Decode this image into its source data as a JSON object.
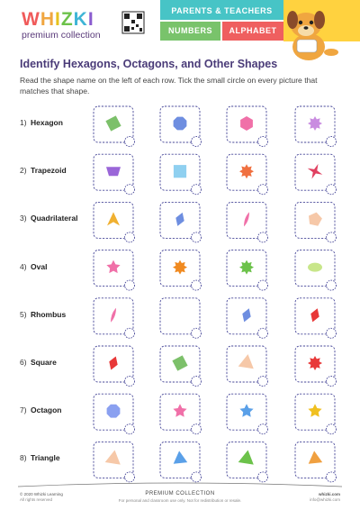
{
  "header": {
    "logo": "WHIZKI",
    "logo_subtitle": "premium collection",
    "tabs": [
      "PARENTS & TEACHERS",
      "NUMBERS",
      "ALPHABET"
    ]
  },
  "title": "Identify Hexagons, Octagons, and Other Shapes",
  "instructions": "Read the shape name on the left of each row. Tick the small circle on every picture that matches that shape.",
  "rows": [
    {
      "number": "1)",
      "label": "Hexagon"
    },
    {
      "number": "2)",
      "label": "Trapezoid"
    },
    {
      "number": "3)",
      "label": "Quadrilateral"
    },
    {
      "number": "4)",
      "label": "Oval"
    },
    {
      "number": "5)",
      "label": "Rhombus"
    },
    {
      "number": "6)",
      "label": "Square"
    },
    {
      "number": "7)",
      "label": "Octagon"
    },
    {
      "number": "8)",
      "label": "Triangle"
    }
  ],
  "footer": {
    "copyright": "© 2020 Whizki Learning",
    "rights": "All rights reserved",
    "collection": "PREMIUM COLLECTION",
    "usage": "For personal and classroom use only. Not for redistribution or resale.",
    "site": "whizki.com",
    "email": "info@whizki.com"
  }
}
